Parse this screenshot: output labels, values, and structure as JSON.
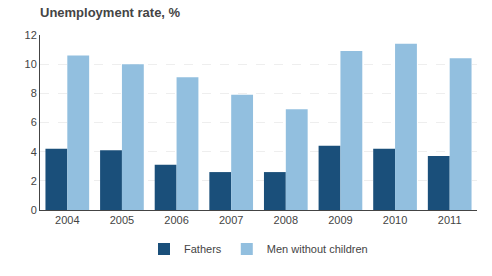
{
  "chart_data": {
    "type": "bar",
    "title": "Unemployment rate, %",
    "categories": [
      "2004",
      "2005",
      "2006",
      "2007",
      "2008",
      "2009",
      "2010",
      "2011"
    ],
    "series": [
      {
        "name": "Fathers",
        "color": "#1a4f7a",
        "values": [
          4.2,
          4.1,
          3.1,
          2.6,
          2.6,
          4.4,
          4.2,
          3.7
        ]
      },
      {
        "name": "Men without children",
        "color": "#92bfdf",
        "values": [
          10.6,
          10.0,
          9.1,
          7.9,
          6.9,
          10.9,
          11.4,
          10.4
        ]
      }
    ],
    "ylim": [
      0,
      12
    ],
    "yticks": [
      0,
      2,
      4,
      6,
      8,
      10,
      12
    ],
    "grid": true,
    "legend": "bottom"
  }
}
